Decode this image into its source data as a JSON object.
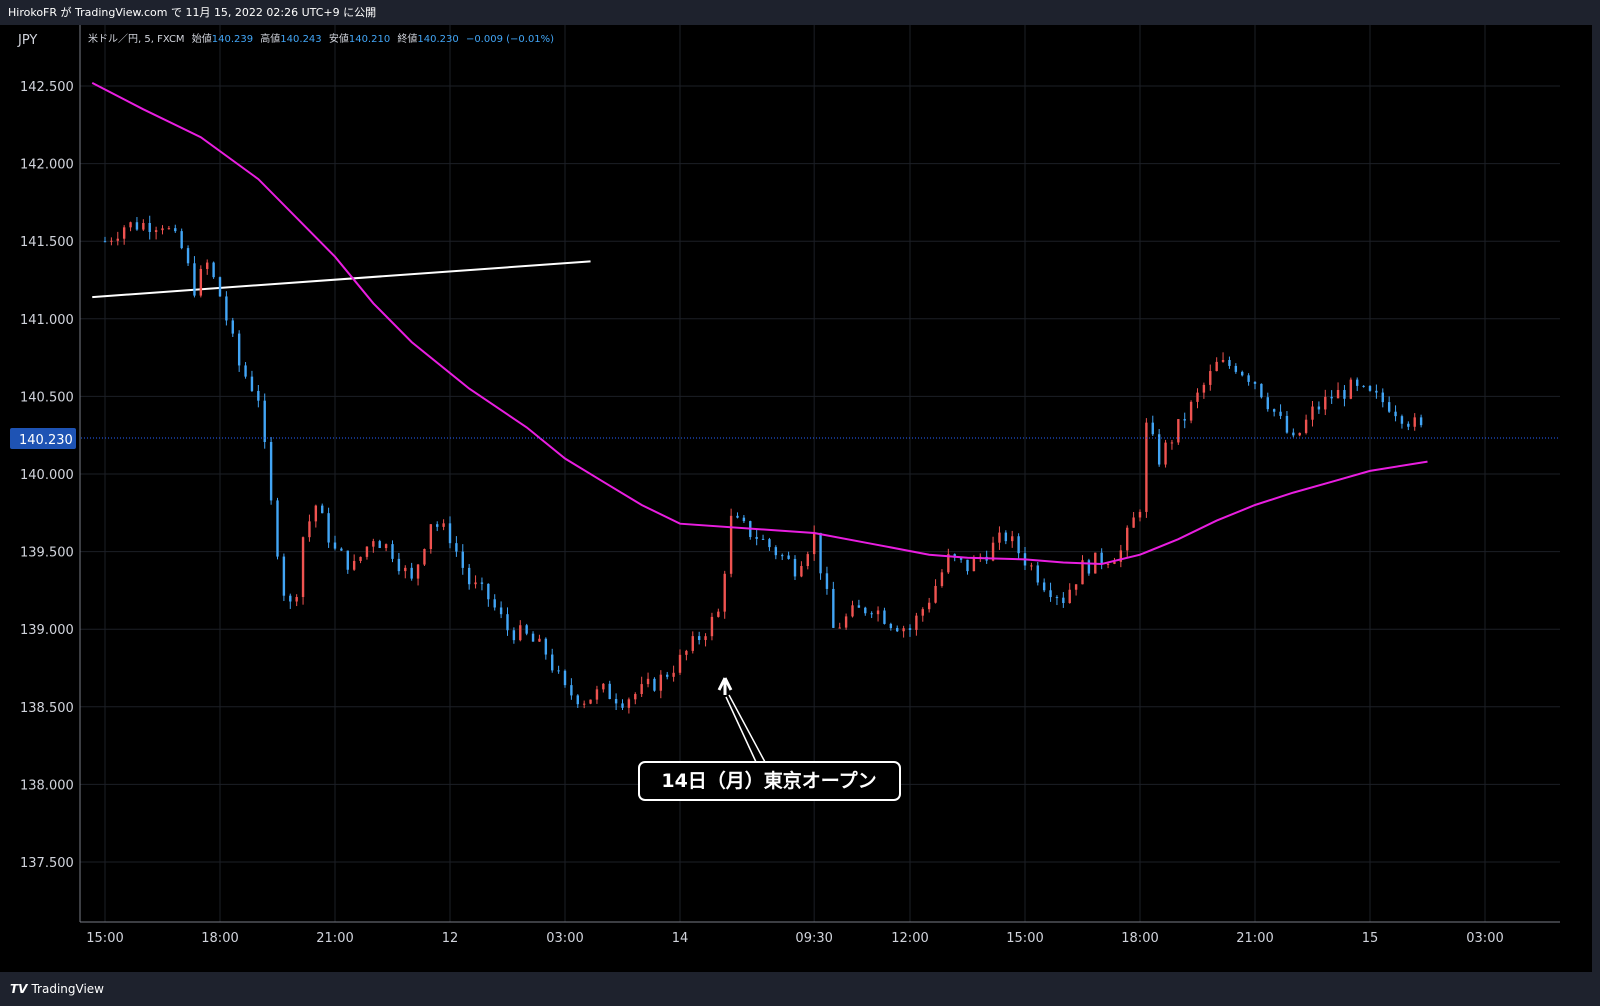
{
  "header": {
    "publish_line": "HirokoFR が TradingView.com で 11月 15, 2022 02:26 UTC+9 に公開"
  },
  "legend": {
    "symbol": "米ドル／円, 5, FXCM",
    "open_label": "始値",
    "open": "140.239",
    "high_label": "高値",
    "high": "140.243",
    "low_label": "安値",
    "low": "140.210",
    "close_label": "終値",
    "close": "140.230",
    "change": "−0.009 (−0.01%)"
  },
  "footer": {
    "brand": "TradingView"
  },
  "annotation": {
    "text": "14日（月）東京オープン"
  },
  "colors": {
    "up": "#ef5350",
    "down": "#42a5f5",
    "ma": "#e91ee0",
    "trendline": "#ffffff",
    "price_badge": "#1e53b4",
    "background": "#000000",
    "grid": "#1c1f26"
  },
  "chart_data": {
    "type": "candlestick",
    "currency_label": "JPY",
    "current_price": "140.230",
    "y_ticks": [
      "142.500",
      "142.000",
      "141.500",
      "141.000",
      "140.500",
      "140.000",
      "139.500",
      "139.000",
      "138.500",
      "138.000",
      "137.500"
    ],
    "x_ticks": [
      "15:00",
      "18:00",
      "21:00",
      "12",
      "03:00",
      "14",
      "09:30",
      "12:00",
      "15:00",
      "18:00",
      "21:00",
      "15",
      "03:00"
    ],
    "ylim": [
      137.1,
      142.87
    ],
    "grid": true,
    "series": [
      {
        "name": "",
        "kind": "candles",
        "close_path": [
          [
            "15:00",
            141.5
          ],
          [
            "15:30",
            141.6
          ],
          [
            "16:30",
            141.62
          ],
          [
            "17:00",
            141.45
          ],
          [
            "17:20",
            141.2
          ],
          [
            "17:40",
            141.35
          ],
          [
            "18:00",
            141.15
          ],
          [
            "18:30",
            140.7
          ],
          [
            "19:00",
            140.5
          ],
          [
            "19:20",
            139.8
          ],
          [
            "19:40",
            139.25
          ],
          [
            "19:55",
            139.1
          ],
          [
            "20:10",
            139.6
          ],
          [
            "20:30",
            139.8
          ],
          [
            "21:00",
            139.5
          ],
          [
            "21:30",
            139.4
          ],
          [
            "22:00",
            139.6
          ],
          [
            "22:30",
            139.5
          ],
          [
            "23:00",
            139.3
          ],
          [
            "23:30",
            139.7
          ],
          [
            "00:00",
            139.6
          ],
          [
            "00:30",
            139.3
          ],
          [
            "01:00",
            139.2
          ],
          [
            "01:30",
            139.0
          ],
          [
            "02:00",
            138.95
          ],
          [
            "02:30",
            138.85
          ],
          [
            "03:00",
            138.6
          ],
          [
            "03:30",
            138.55
          ],
          [
            "04:00",
            138.6
          ],
          [
            "04:30",
            138.55
          ],
          [
            "05:00",
            138.6
          ],
          [
            "05:30",
            138.68
          ],
          [
            "06:00",
            138.8
          ],
          [
            "14 07:00",
            139.1
          ],
          [
            "07:20",
            139.7
          ],
          [
            "08:00",
            139.6
          ],
          [
            "08:30",
            139.5
          ],
          [
            "09:00",
            139.4
          ],
          [
            "09:30",
            139.6
          ],
          [
            "10:00",
            139.0
          ],
          [
            "10:30",
            139.1
          ],
          [
            "11:00",
            139.15
          ],
          [
            "11:30",
            139.05
          ],
          [
            "12:00",
            139.0
          ],
          [
            "12:30",
            139.2
          ],
          [
            "13:00",
            139.45
          ],
          [
            "13:30",
            139.4
          ],
          [
            "14:00",
            139.5
          ],
          [
            "14:30",
            139.6
          ],
          [
            "15:00",
            139.45
          ],
          [
            "15:30",
            139.3
          ],
          [
            "16:00",
            139.2
          ],
          [
            "16:30",
            139.4
          ],
          [
            "17:00",
            139.45
          ],
          [
            "17:30",
            139.5
          ],
          [
            "18:00",
            139.8
          ],
          [
            "18:10",
            140.3
          ],
          [
            "18:30",
            140.1
          ],
          [
            "19:00",
            140.3
          ],
          [
            "19:30",
            140.5
          ],
          [
            "20:00",
            140.7
          ],
          [
            "20:30",
            140.7
          ],
          [
            "21:00",
            140.6
          ],
          [
            "21:30",
            140.4
          ],
          [
            "22:00",
            140.2
          ],
          [
            "22:30",
            140.4
          ],
          [
            "23:00",
            140.5
          ],
          [
            "23:30",
            140.55
          ],
          [
            "00:00",
            140.5
          ],
          [
            "00:30",
            140.45
          ],
          [
            "01:00",
            140.35
          ],
          [
            "01:30",
            140.25
          ]
        ]
      },
      {
        "name": "",
        "kind": "moving_average",
        "points": [
          [
            "14:40",
            142.52
          ],
          [
            "16:00",
            142.35
          ],
          [
            "17:30",
            142.17
          ],
          [
            "19:00",
            141.9
          ],
          [
            "20:00",
            141.65
          ],
          [
            "21:00",
            141.4
          ],
          [
            "22:00",
            141.1
          ],
          [
            "23:00",
            140.85
          ],
          [
            "00:30",
            140.55
          ],
          [
            "02:00",
            140.3
          ],
          [
            "03:00",
            140.1
          ],
          [
            "04:00",
            139.95
          ],
          [
            "05:00",
            139.8
          ],
          [
            "06:00",
            139.68
          ],
          [
            "14 09:30",
            139.62
          ],
          [
            "11:00",
            139.55
          ],
          [
            "12:30",
            139.48
          ],
          [
            "13:30",
            139.46
          ],
          [
            "15:00",
            139.45
          ],
          [
            "16:00",
            139.43
          ],
          [
            "17:00",
            139.42
          ],
          [
            "18:00",
            139.48
          ],
          [
            "19:00",
            139.58
          ],
          [
            "20:00",
            139.7
          ],
          [
            "21:00",
            139.8
          ],
          [
            "22:00",
            139.88
          ],
          [
            "23:00",
            139.95
          ],
          [
            "00:00",
            140.02
          ],
          [
            "01:30",
            140.08
          ]
        ]
      },
      {
        "name": "",
        "kind": "trendline",
        "points": [
          [
            "14:40",
            141.14
          ],
          [
            "03:40",
            141.37
          ]
        ]
      }
    ]
  }
}
